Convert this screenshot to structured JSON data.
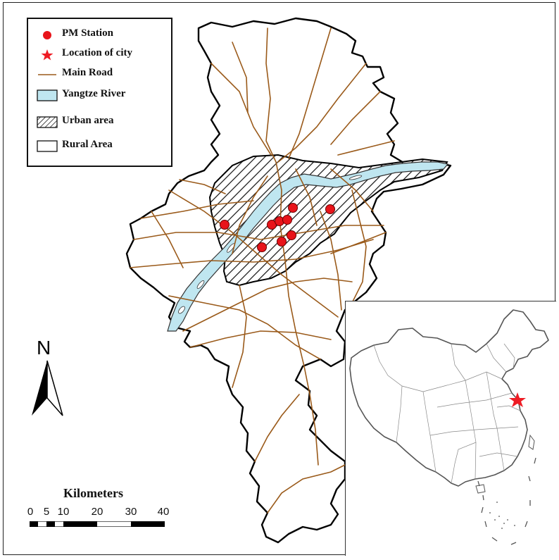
{
  "legend": {
    "items": [
      {
        "label": "PM Station",
        "symbol": "red-circle"
      },
      {
        "label": "Location of city",
        "symbol": "red-star"
      },
      {
        "label": "Main Road",
        "symbol": "brown-line"
      },
      {
        "label": "Yangtze River",
        "symbol": "light-blue-box"
      },
      {
        "label": "Urban area",
        "symbol": "hatched-box"
      },
      {
        "label": "Rural Area",
        "symbol": "white-box"
      }
    ]
  },
  "north_arrow": {
    "label": "N"
  },
  "scale_bar": {
    "title": "Kilometers",
    "ticks": [
      "0",
      "5",
      "10",
      "20",
      "30",
      "40"
    ]
  },
  "colors": {
    "pm_station": "#e8141a",
    "city_star": "#ee1c24",
    "road": "#9a5a1a",
    "river": "#bfe6f0",
    "boundary": "#000000"
  }
}
